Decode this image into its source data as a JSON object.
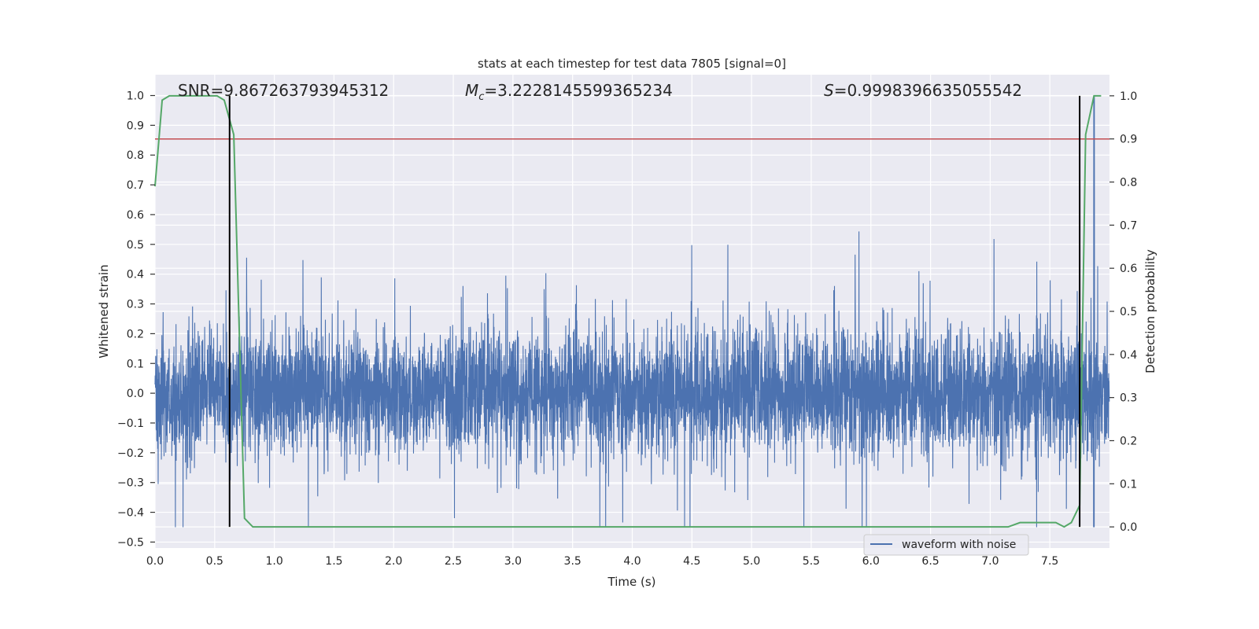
{
  "chart_data": {
    "type": "line",
    "title": "stats at each timestep for test data 7805 [signal=0]",
    "xlabel": "Time (s)",
    "ylabel": "Whitened strain",
    "ylabel_right": "Detection probability",
    "xlim": [
      0,
      8
    ],
    "ylim": [
      -0.52,
      1.07
    ],
    "ylim_right": [
      -0.049,
      1.049
    ],
    "xticks": [
      "0.0",
      "0.5",
      "1.0",
      "1.5",
      "2.0",
      "2.5",
      "3.0",
      "3.5",
      "4.0",
      "4.5",
      "5.0",
      "5.5",
      "6.0",
      "6.5",
      "7.0",
      "7.5"
    ],
    "yticks": [
      "−0.5",
      "−0.4",
      "−0.3",
      "−0.2",
      "−0.1",
      "0.0",
      "0.1",
      "0.2",
      "0.3",
      "0.4",
      "0.5",
      "0.6",
      "0.7",
      "0.8",
      "0.9",
      "1.0"
    ],
    "yticks_right": [
      "0.0",
      "0.1",
      "0.2",
      "0.3",
      "0.4",
      "0.5",
      "0.6",
      "0.7",
      "0.8",
      "0.9",
      "1.0"
    ],
    "grid": true,
    "legend": {
      "position": "lower-right",
      "entries": [
        "waveform with noise"
      ]
    },
    "annotations": {
      "snr": "SNR=9.867263793945312",
      "mc_symbol": "M",
      "mc_sub": "c",
      "mc_value": "=3.2228145599365234",
      "s_symbol": "S",
      "s_value": "=0.9998396635055542"
    },
    "series": [
      {
        "name": "waveform with noise",
        "axis": "left",
        "color": "#4c72b0",
        "description_values": {
          "noise_std": 0.1,
          "peak": {
            "x": 7.87,
            "y": 1.0
          }
        }
      },
      {
        "axis": "right",
        "color": "#55a868",
        "x": [
          0.0,
          0.06,
          0.12,
          0.52,
          0.58,
          0.66,
          0.75,
          0.82,
          1.0,
          1.5,
          2.0,
          3.0,
          4.0,
          4.5,
          5.0,
          6.0,
          7.0,
          7.15,
          7.25,
          7.35,
          7.55,
          7.62,
          7.68,
          7.75,
          7.8,
          7.87,
          7.93
        ],
        "y": [
          0.79,
          0.99,
          1.0,
          1.0,
          0.99,
          0.91,
          0.02,
          0.0,
          0.0,
          0.0,
          0.0,
          0.0,
          0.0,
          0.0,
          0.0,
          0.0,
          0.0,
          0.0,
          0.01,
          0.01,
          0.01,
          0.0,
          0.01,
          0.05,
          0.91,
          1.0,
          1.0
        ]
      }
    ],
    "hlines": [
      {
        "axis": "right",
        "y": 0.9,
        "color": "#c44e52"
      }
    ],
    "vlines": [
      {
        "x": 0.625,
        "color": "#000000"
      },
      {
        "x": 7.75,
        "color": "#000000"
      }
    ]
  }
}
